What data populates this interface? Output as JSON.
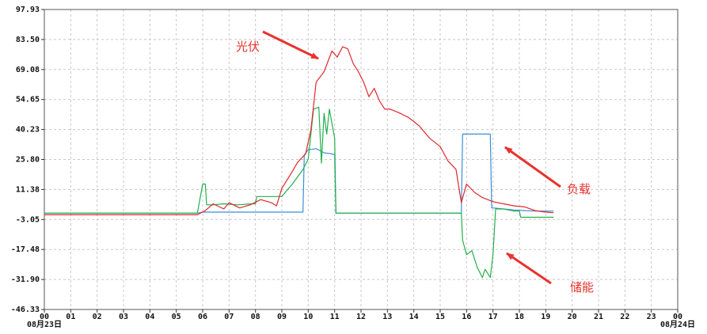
{
  "chart_data": {
    "type": "line",
    "title": "",
    "xlabel": "",
    "ylabel": "",
    "ylim": [
      -46.33,
      97.93
    ],
    "xlim": [
      0,
      24
    ],
    "y_ticks": [
      "97.93",
      "83.50",
      "69.08",
      "54.65",
      "40.23",
      "25.80",
      "11.38",
      "-3.05",
      "-17.48",
      "-31.90",
      "-46.33"
    ],
    "x_ticks": [
      "00",
      "01",
      "02",
      "03",
      "04",
      "05",
      "06",
      "07",
      "08",
      "09",
      "10",
      "11",
      "12",
      "13",
      "14",
      "15",
      "16",
      "17",
      "18",
      "19",
      "20",
      "21",
      "22",
      "23",
      "00"
    ],
    "x_date_start": "08月23日",
    "x_date_end": "08月24日",
    "grid": true,
    "colors": {
      "pv": "#e0282d",
      "load": "#3a8fd6",
      "storage": "#22b04a",
      "annotation": "#e8332e"
    },
    "annotations": [
      {
        "text": "光伏",
        "series": "pv"
      },
      {
        "text": "负载",
        "series": "load"
      },
      {
        "text": "储能",
        "series": "storage"
      }
    ],
    "series": [
      {
        "key": "pv",
        "x": [
          0,
          5.8,
          6.1,
          6.4,
          6.8,
          7.0,
          7.4,
          7.8,
          8.2,
          8.6,
          8.8,
          9.0,
          9.3,
          9.6,
          9.9,
          10.1,
          10.3,
          10.6,
          10.9,
          11.1,
          11.3,
          11.5,
          11.7,
          11.9,
          12.1,
          12.3,
          12.5,
          12.7,
          12.9,
          13.1,
          13.4,
          13.8,
          14.2,
          14.6,
          15.0,
          15.3,
          15.6,
          15.8,
          16.0,
          16.3,
          16.6,
          17.0,
          17.4,
          17.8,
          18.2,
          18.6,
          19.0,
          19.3
        ],
        "y": [
          -0.8,
          -0.8,
          1.2,
          4.5,
          2.0,
          5.0,
          2.5,
          4.0,
          6.5,
          5.0,
          3.5,
          12.0,
          18.0,
          24.5,
          28.5,
          40.0,
          63.0,
          68.0,
          78.0,
          75.0,
          80.0,
          79.0,
          72.0,
          68.0,
          63.0,
          56.0,
          60.0,
          54.0,
          50.0,
          50.0,
          48.5,
          46.0,
          42.0,
          36.0,
          32.0,
          25.0,
          21.0,
          5.0,
          14.0,
          10.0,
          7.5,
          5.5,
          4.5,
          3.5,
          3.0,
          1.2,
          0.5,
          0.2
        ]
      },
      {
        "key": "load",
        "x": [
          0,
          5.8,
          6.0,
          9.8,
          9.85,
          10.0,
          10.3,
          10.6,
          10.9,
          11.0,
          11.05,
          15.8,
          15.85,
          16.9,
          16.95,
          17.0,
          17.4,
          17.8,
          18.2,
          18.6,
          19.0,
          19.3
        ],
        "y": [
          0,
          0,
          0.5,
          0.5,
          28.0,
          30.5,
          31.0,
          29.0,
          28.5,
          28.0,
          0,
          0,
          38.0,
          38.0,
          2.5,
          2.5,
          2.0,
          1.5,
          1.2,
          1.0,
          1.0,
          1.0
        ]
      },
      {
        "key": "storage",
        "x": [
          0,
          5.8,
          6.0,
          6.1,
          6.15,
          6.4,
          6.8,
          7.3,
          7.9,
          8.0,
          8.05,
          8.8,
          9.0,
          9.4,
          9.8,
          10.0,
          10.2,
          10.4,
          10.5,
          10.6,
          10.7,
          10.8,
          11.0,
          11.05,
          15.8,
          15.85,
          16.0,
          16.2,
          16.4,
          16.6,
          16.7,
          16.9,
          17.0,
          17.1,
          17.4,
          17.8,
          18.0,
          18.05,
          19.0,
          19.3
        ],
        "y": [
          0,
          0,
          14.0,
          14.0,
          4.0,
          4.0,
          4.5,
          4.0,
          4.5,
          4.5,
          8.0,
          8.0,
          8.0,
          14.0,
          21.0,
          26.0,
          50.0,
          51.0,
          24.0,
          48.0,
          38.0,
          50.0,
          36.0,
          0,
          0,
          -13.0,
          -20.0,
          -18.0,
          -26.0,
          -31.0,
          -27.0,
          -31.0,
          -20.0,
          2.0,
          2.0,
          1.0,
          1.0,
          -2.0,
          -2.0,
          -2.0
        ]
      }
    ]
  }
}
